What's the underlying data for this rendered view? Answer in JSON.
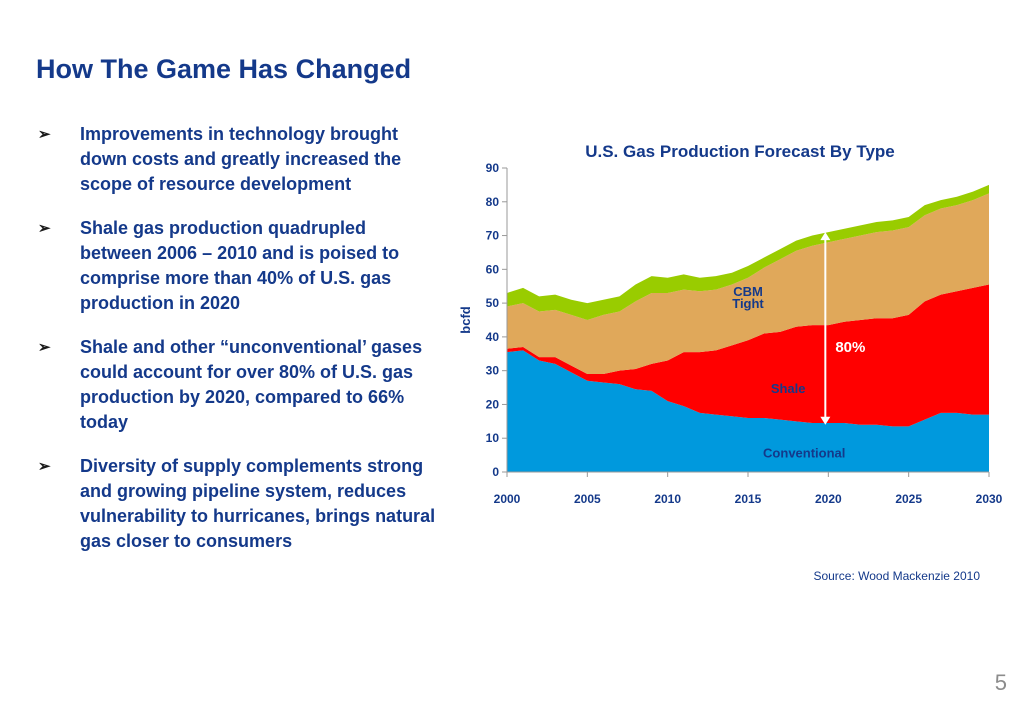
{
  "slide": {
    "title": "How The Game Has Changed",
    "bullets": [
      "Improvements in technology brought down costs and greatly increased the scope of resource development",
      "Shale gas production quadrupled between 2006 – 2010 and is poised to comprise more than 40% of U.S. gas production in 2020",
      "Shale and other “unconventional’ gases could account for over 80% of  U.S. gas production by 2020, compared to 66% today",
      "Diversity of supply complements strong and growing pipeline system, reduces vulnerability to hurricanes, brings natural gas closer to consumers"
    ],
    "bullet_glyph": "➢",
    "source": "Source: Wood Mackenzie 2010",
    "page_number": "5"
  },
  "chart_data": {
    "type": "area",
    "stacked": true,
    "title": "U.S. Gas Production Forecast By Type",
    "xlabel": "",
    "ylabel": "bcfd",
    "xlim": [
      2000,
      2030
    ],
    "ylim": [
      0,
      90
    ],
    "yticks": [
      0,
      10,
      20,
      30,
      40,
      50,
      60,
      70,
      80,
      90
    ],
    "xticks": [
      2000,
      2005,
      2010,
      2015,
      2020,
      2025,
      2030
    ],
    "grid": false,
    "legend": "none (series labelled directly on the areas)",
    "x": [
      2000,
      2001,
      2002,
      2003,
      2004,
      2005,
      2006,
      2007,
      2008,
      2009,
      2010,
      2011,
      2012,
      2013,
      2014,
      2015,
      2016,
      2017,
      2018,
      2019,
      2020,
      2021,
      2022,
      2023,
      2024,
      2025,
      2026,
      2027,
      2028,
      2029,
      2030
    ],
    "series": [
      {
        "name": "Conventional",
        "color": "#0099dd",
        "values": [
          35.5,
          36,
          33,
          32,
          29.5,
          27,
          26.5,
          26,
          24.5,
          24,
          21,
          19.5,
          17.5,
          17,
          16.5,
          16,
          16,
          15.5,
          15,
          14.5,
          14.5,
          14.5,
          14,
          14,
          13.5,
          13.5,
          15.5,
          17.5,
          17.5,
          17,
          17
        ]
      },
      {
        "name": "Shale",
        "color": "#ff0000",
        "values": [
          1,
          1,
          1,
          2,
          2,
          2,
          2.5,
          4,
          6,
          8,
          12,
          16,
          18,
          19,
          21,
          23,
          25,
          26,
          28,
          29,
          29,
          30,
          31,
          31.5,
          32,
          33,
          35,
          35,
          36,
          37.5,
          38.5
        ]
      },
      {
        "name": "Tight",
        "color": "#e0a85a",
        "values": [
          12.5,
          13,
          13.5,
          14,
          15,
          16,
          17.5,
          17.5,
          20,
          21,
          20,
          18.5,
          18,
          18,
          18,
          18.5,
          19.5,
          21.5,
          22.5,
          23.5,
          24.5,
          24.5,
          25,
          25.5,
          26,
          26,
          25.5,
          25.5,
          25.5,
          26,
          27
        ]
      },
      {
        "name": "CBM",
        "color": "#99cc00",
        "values": [
          4,
          4.5,
          4.5,
          4.5,
          4.5,
          5,
          4.5,
          4.5,
          5,
          5,
          4.5,
          4.5,
          4,
          4,
          3.5,
          3.5,
          3,
          3,
          3,
          3,
          3,
          3,
          3,
          3,
          3,
          3,
          3,
          2.5,
          2.5,
          2.5,
          2.5
        ]
      }
    ],
    "annotation": {
      "label": "80%",
      "text_color": "#ffffff",
      "x": 2020,
      "y_from": 14,
      "y_to": 71
    }
  }
}
